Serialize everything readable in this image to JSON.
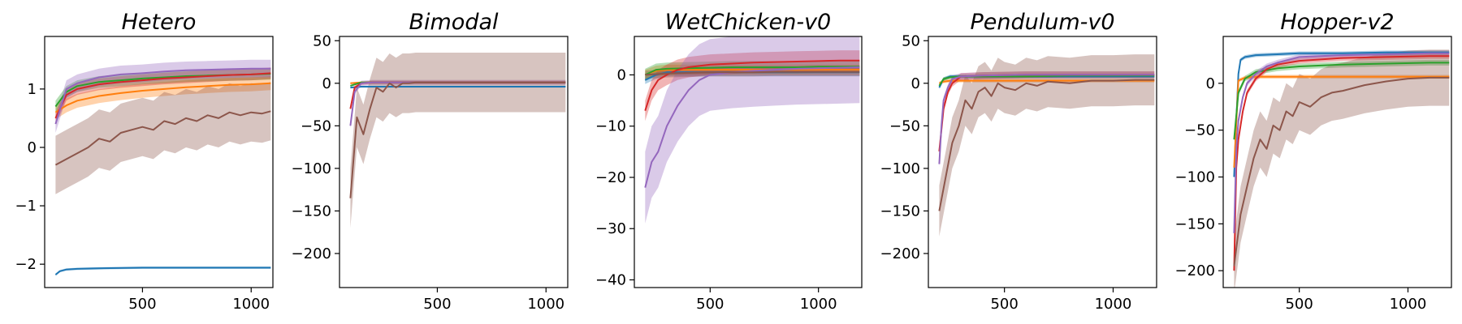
{
  "chart_data": [
    {
      "type": "line",
      "title": "Hetero",
      "xlim": [
        50,
        1100
      ],
      "ylim": [
        -2.4,
        1.9
      ],
      "xticks": [
        500,
        1000
      ],
      "yticks": [
        -2,
        -1,
        0,
        1
      ],
      "series": [
        {
          "color": "#1f77b4",
          "x": [
            100,
            120,
            150,
            200,
            300,
            500,
            700,
            900,
            1090
          ],
          "y": [
            -2.18,
            -2.12,
            -2.09,
            -2.08,
            -2.07,
            -2.06,
            -2.06,
            -2.06,
            -2.06
          ],
          "band": 0.02
        },
        {
          "color": "#ff7f0e",
          "x": [
            100,
            150,
            200,
            300,
            400,
            500,
            600,
            700,
            800,
            900,
            1000,
            1090
          ],
          "y": [
            0.6,
            0.72,
            0.8,
            0.88,
            0.93,
            0.97,
            1.0,
            1.03,
            1.05,
            1.07,
            1.08,
            1.1
          ],
          "band": 0.12
        },
        {
          "color": "#2ca02c",
          "x": [
            100,
            150,
            200,
            300,
            400,
            500,
            600,
            700,
            800,
            900,
            1000,
            1090
          ],
          "y": [
            0.7,
            0.95,
            1.05,
            1.12,
            1.15,
            1.18,
            1.2,
            1.22,
            1.23,
            1.24,
            1.25,
            1.26
          ],
          "band": 0.1
        },
        {
          "color": "#d62728",
          "x": [
            100,
            150,
            200,
            300,
            400,
            500,
            600,
            700,
            800,
            900,
            1000,
            1090
          ],
          "y": [
            0.5,
            0.9,
            1.0,
            1.08,
            1.12,
            1.15,
            1.18,
            1.2,
            1.22,
            1.24,
            1.25,
            1.27
          ],
          "band": 0.1
        },
        {
          "color": "#9467bd",
          "x": [
            100,
            150,
            200,
            300,
            400,
            500,
            600,
            700,
            800,
            900,
            1000,
            1090
          ],
          "y": [
            0.4,
            1.0,
            1.1,
            1.2,
            1.25,
            1.27,
            1.3,
            1.32,
            1.33,
            1.34,
            1.35,
            1.35
          ],
          "band": 0.15
        },
        {
          "color": "#8c564b",
          "x": [
            100,
            150,
            200,
            250,
            300,
            350,
            400,
            450,
            500,
            550,
            600,
            650,
            700,
            750,
            800,
            850,
            900,
            950,
            1000,
            1050,
            1090
          ],
          "y": [
            -0.3,
            -0.2,
            -0.1,
            0.0,
            0.15,
            0.1,
            0.25,
            0.3,
            0.35,
            0.3,
            0.45,
            0.4,
            0.5,
            0.45,
            0.55,
            0.5,
            0.6,
            0.55,
            0.6,
            0.58,
            0.62
          ],
          "band": 0.5
        }
      ]
    },
    {
      "type": "line",
      "title": "Bimodal",
      "xlim": [
        50,
        1100
      ],
      "ylim": [
        -240,
        55
      ],
      "xticks": [
        500,
        1000
      ],
      "yticks": [
        -200,
        -150,
        -100,
        -50,
        0,
        50
      ],
      "series": [
        {
          "color": "#1f77b4",
          "x": [
            100,
            150,
            200,
            400,
            600,
            800,
            1000,
            1090
          ],
          "y": [
            -5,
            -4,
            -4,
            -4,
            -4,
            -4,
            -4,
            -4
          ],
          "band": 1
        },
        {
          "color": "#ff7f0e",
          "x": [
            100,
            150,
            200,
            400,
            600,
            800,
            1000,
            1090
          ],
          "y": [
            0,
            1,
            1,
            1,
            1,
            1,
            1,
            1
          ],
          "band": 1
        },
        {
          "color": "#2ca02c",
          "x": [
            100,
            150,
            200,
            400,
            600,
            800,
            1000,
            1090
          ],
          "y": [
            -3,
            1,
            1,
            1,
            1,
            1,
            1,
            1
          ],
          "band": 1
        },
        {
          "color": "#d62728",
          "x": [
            100,
            120,
            150,
            200,
            400,
            600,
            800,
            1000,
            1090
          ],
          "y": [
            -30,
            -5,
            0,
            1,
            1,
            1,
            1,
            1,
            1
          ],
          "band": 2
        },
        {
          "color": "#9467bd",
          "x": [
            100,
            120,
            150,
            200,
            400,
            600,
            800,
            1000,
            1090
          ],
          "y": [
            -50,
            -10,
            0,
            1,
            1,
            1,
            1,
            1,
            1
          ],
          "band": 3
        },
        {
          "color": "#8c564b",
          "x": [
            100,
            130,
            160,
            190,
            220,
            250,
            280,
            310,
            340,
            370,
            400,
            500,
            700,
            900,
            1090
          ],
          "y": [
            -135,
            -40,
            -60,
            -30,
            -5,
            -10,
            0,
            -5,
            0,
            0,
            1,
            1,
            1,
            1,
            1
          ],
          "band": 35
        }
      ]
    },
    {
      "type": "line",
      "title": "WetChicken-v0",
      "xlim": [
        150,
        1200
      ],
      "ylim": [
        -41.5,
        7.5
      ],
      "xticks": [
        500,
        1000
      ],
      "yticks": [
        -40,
        -30,
        -20,
        -10,
        0
      ],
      "series": [
        {
          "color": "#1f77b4",
          "x": [
            200,
            250,
            300,
            400,
            500,
            600,
            700,
            800,
            900,
            1000,
            1100,
            1190
          ],
          "y": [
            -1,
            0,
            0.5,
            0.5,
            0.5,
            0.5,
            0.5,
            0.5,
            0.5,
            0.5,
            0.5,
            0.5
          ],
          "band": 0.8
        },
        {
          "color": "#ff7f0e",
          "x": [
            200,
            250,
            300,
            400,
            500,
            600,
            700,
            800,
            900,
            1000,
            1100,
            1190
          ],
          "y": [
            0,
            0.8,
            1,
            1,
            1,
            1,
            1,
            1,
            1,
            1,
            1,
            1
          ],
          "band": 1
        },
        {
          "color": "#2ca02c",
          "x": [
            200,
            250,
            300,
            400,
            500,
            600,
            700,
            800,
            900,
            1000,
            1100,
            1190
          ],
          "y": [
            0,
            1,
            1.2,
            1.3,
            1.4,
            1.5,
            1.5,
            1.5,
            1.5,
            1.6,
            1.6,
            1.6
          ],
          "band": 1.2
        },
        {
          "color": "#d62728",
          "x": [
            200,
            230,
            260,
            300,
            350,
            400,
            500,
            600,
            700,
            800,
            900,
            1000,
            1100,
            1190
          ],
          "y": [
            -7,
            -3,
            -1,
            0,
            1,
            1.5,
            2,
            2.2,
            2.4,
            2.5,
            2.6,
            2.7,
            2.8,
            2.8
          ],
          "band": 2
        },
        {
          "color": "#9467bd",
          "x": [
            200,
            230,
            260,
            300,
            350,
            400,
            450,
            500,
            600,
            700,
            800,
            900,
            1000,
            1100,
            1190
          ],
          "y": [
            -22,
            -17,
            -15,
            -10,
            -6,
            -3,
            -1,
            0,
            0.5,
            0.8,
            1,
            1.2,
            1.3,
            1.4,
            1.5
          ],
          "band": 7
        },
        {
          "color": "#8c564b",
          "x": [
            200,
            300,
            400,
            500,
            600,
            700,
            800,
            900,
            1000,
            1100,
            1190
          ],
          "y": [
            0,
            0.3,
            0.4,
            0.5,
            0.5,
            0.5,
            0.6,
            0.6,
            0.6,
            0.6,
            0.6
          ],
          "band": 0.8
        }
      ]
    },
    {
      "type": "line",
      "title": "Pendulum-v0",
      "xlim": [
        150,
        1200
      ],
      "ylim": [
        -240,
        55
      ],
      "xticks": [
        500,
        1000
      ],
      "yticks": [
        -200,
        -150,
        -100,
        -50,
        0,
        50
      ],
      "series": [
        {
          "color": "#1f77b4",
          "x": [
            200,
            220,
            250,
            300,
            400,
            600,
            800,
            1000,
            1190
          ],
          "y": [
            -5,
            5,
            8,
            8,
            8,
            8,
            8,
            8,
            8
          ],
          "band": 2
        },
        {
          "color": "#ff7f0e",
          "x": [
            200,
            220,
            250,
            300,
            400,
            600,
            800,
            1000,
            1190
          ],
          "y": [
            0,
            2,
            3,
            3,
            3,
            3,
            3,
            3,
            3
          ],
          "band": 2
        },
        {
          "color": "#2ca02c",
          "x": [
            200,
            220,
            250,
            300,
            400,
            600,
            800,
            1000,
            1190
          ],
          "y": [
            -3,
            5,
            7,
            8,
            8,
            8,
            9,
            9,
            9
          ],
          "band": 2
        },
        {
          "color": "#d62728",
          "x": [
            200,
            220,
            240,
            260,
            300,
            400,
            600,
            800,
            1000,
            1190
          ],
          "y": [
            -80,
            -30,
            -10,
            0,
            8,
            9,
            10,
            10,
            10,
            10
          ],
          "band": 4
        },
        {
          "color": "#9467bd",
          "x": [
            200,
            210,
            220,
            240,
            260,
            300,
            400,
            600,
            800,
            1000,
            1190
          ],
          "y": [
            -95,
            -50,
            -20,
            -5,
            5,
            8,
            9,
            10,
            10,
            10,
            10
          ],
          "band": 4
        },
        {
          "color": "#8c564b",
          "x": [
            200,
            230,
            260,
            290,
            320,
            350,
            380,
            410,
            440,
            470,
            500,
            550,
            600,
            650,
            700,
            800,
            900,
            1000,
            1100,
            1190
          ],
          "y": [
            -150,
            -110,
            -70,
            -50,
            -20,
            -30,
            -10,
            -5,
            -15,
            0,
            -5,
            -8,
            0,
            -3,
            2,
            0,
            3,
            3,
            4,
            4
          ],
          "band": 30
        }
      ]
    },
    {
      "type": "line",
      "title": "Hopper-v2",
      "xlim": [
        150,
        1200
      ],
      "ylim": [
        -218,
        50
      ],
      "xticks": [
        500,
        1000
      ],
      "yticks": [
        -200,
        -150,
        -100,
        -50,
        0
      ],
      "series": [
        {
          "color": "#1f77b4",
          "x": [
            200,
            210,
            220,
            230,
            250,
            300,
            400,
            500,
            700,
            900,
            1000,
            1190
          ],
          "y": [
            -100,
            -40,
            10,
            25,
            28,
            30,
            31,
            32,
            32,
            33,
            33,
            33
          ],
          "band": 2
        },
        {
          "color": "#ff7f0e",
          "x": [
            200,
            220,
            250,
            300,
            400,
            500,
            700,
            900,
            1100,
            1190
          ],
          "y": [
            -90,
            3,
            6,
            7,
            7,
            7,
            7,
            7,
            7,
            7
          ],
          "band": 2
        },
        {
          "color": "#2ca02c",
          "x": [
            200,
            220,
            250,
            300,
            400,
            500,
            700,
            900,
            1100,
            1190
          ],
          "y": [
            -60,
            -10,
            5,
            12,
            16,
            18,
            20,
            21,
            22,
            22
          ],
          "band": 3
        },
        {
          "color": "#d62728",
          "x": [
            200,
            210,
            220,
            240,
            260,
            300,
            350,
            400,
            500,
            700,
            900,
            1100,
            1190
          ],
          "y": [
            -200,
            -90,
            -60,
            -30,
            -10,
            5,
            15,
            20,
            24,
            27,
            28,
            29,
            29
          ],
          "band": 3
        },
        {
          "color": "#9467bd",
          "x": [
            200,
            210,
            220,
            240,
            260,
            300,
            350,
            400,
            500,
            700,
            900,
            1100,
            1190
          ],
          "y": [
            -160,
            -70,
            -40,
            -15,
            0,
            10,
            18,
            22,
            28,
            30,
            31,
            32,
            32
          ],
          "band": 3
        },
        {
          "color": "#8c564b",
          "x": [
            200,
            230,
            260,
            290,
            320,
            350,
            380,
            410,
            440,
            470,
            500,
            550,
            600,
            650,
            700,
            800,
            900,
            1000,
            1100,
            1190
          ],
          "y": [
            -195,
            -140,
            -110,
            -80,
            -60,
            -70,
            -45,
            -50,
            -30,
            -35,
            -20,
            -25,
            -15,
            -10,
            -8,
            -2,
            2,
            5,
            6,
            6
          ],
          "band": 30
        }
      ]
    }
  ]
}
